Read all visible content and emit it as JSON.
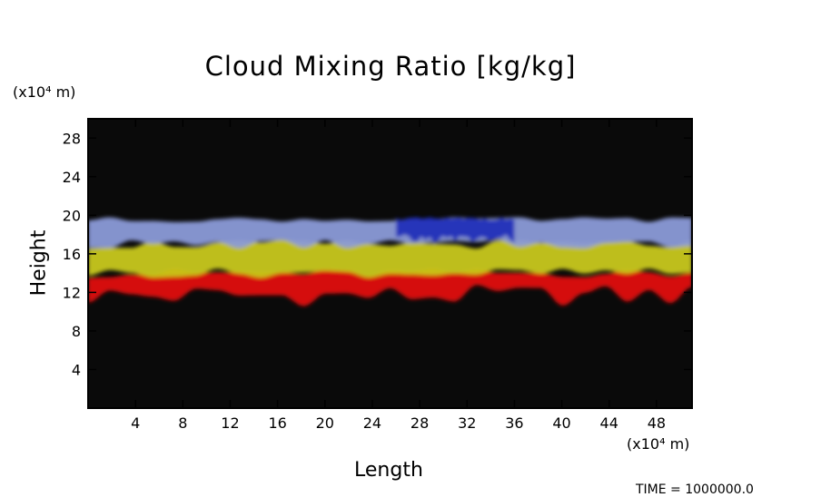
{
  "chart_data": {
    "type": "heatmap",
    "title": "Cloud Mixing Ratio [kg/kg]",
    "xlabel": "Length",
    "ylabel": "Height",
    "x_units": "(x10⁴ m)",
    "y_units": "(x10⁴ m)",
    "x_ticks": [
      4,
      8,
      12,
      16,
      20,
      24,
      28,
      32,
      36,
      40,
      44,
      48
    ],
    "y_ticks": [
      4,
      8,
      12,
      16,
      20,
      24,
      28
    ],
    "xlim": [
      0,
      51
    ],
    "ylim": [
      0,
      30
    ],
    "background": "#0a0a0a",
    "layers": [
      {
        "color": "#e01010",
        "x": [
          0,
          51
        ],
        "y_bottom": [
          10.5,
          12.8
        ],
        "y_top": [
          13.5,
          14.5
        ]
      },
      {
        "color": "#c8c81a",
        "x": [
          0,
          51
        ],
        "y_bottom": [
          13.5,
          14.5
        ],
        "y_top": [
          16.5,
          17.5
        ]
      },
      {
        "color": "#8a9ad8",
        "x": [
          0,
          51
        ],
        "y_bottom": [
          16.5,
          17.5
        ],
        "y_top": [
          19.3,
          19.8
        ]
      },
      {
        "color": "#1a2ab8",
        "x": [
          26,
          36
        ],
        "y_bottom": [
          17.0,
          18.0
        ],
        "y_top": [
          19.5,
          19.8
        ]
      }
    ]
  },
  "footer": {
    "time_text": "TIME = 1000000.0"
  }
}
